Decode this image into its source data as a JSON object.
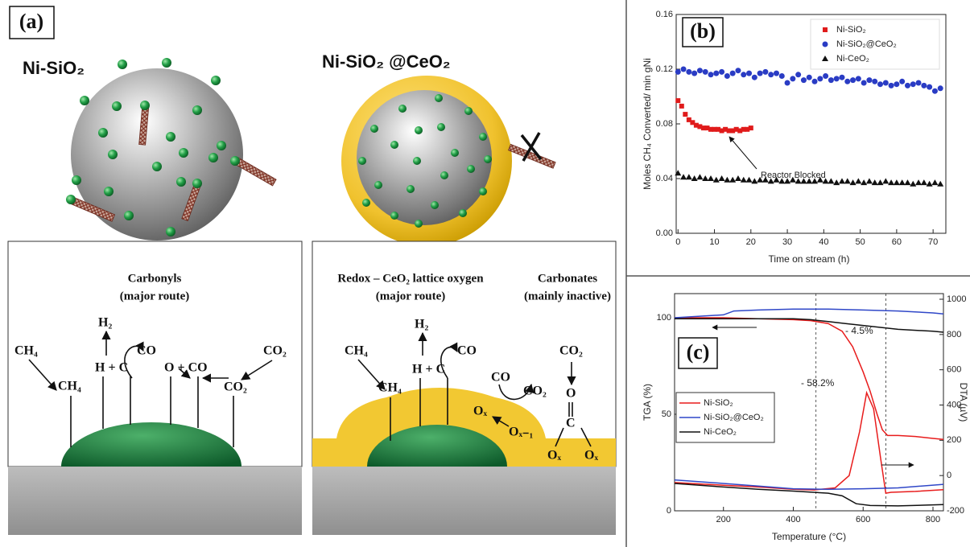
{
  "panel_a": {
    "label": "(a)",
    "left_title": "Ni-SiO₂",
    "right_title": "Ni-SiO₂ @CeO₂",
    "left_box": {
      "heading": [
        "Carbonyls",
        "(major route)"
      ],
      "labels": [
        "CH₄",
        "CH₄",
        "H₂",
        "H + C",
        "CO",
        "O + CO",
        "CO₂",
        "CO₂"
      ]
    },
    "right_box": {
      "heading": [
        "Redox – CeO₂ lattice oxygen",
        "(major route)"
      ],
      "heading2": [
        "Carbonates",
        "(mainly inactive)"
      ],
      "labels": [
        "CH₄",
        "CH₄",
        "H₂",
        "H + C",
        "CO",
        "CO",
        "CO₂",
        "Oₓ",
        "Oₓ₋₁",
        "CO₂",
        "O",
        "C",
        "Oₓ",
        "Oₓ"
      ]
    }
  },
  "chart_data": [
    {
      "type": "scatter",
      "panel_label": "(b)",
      "y_label": "Moles CH₄ Converted/ min gNi",
      "x_label": "Time on stream (h)",
      "annotations": [
        "Reactor Blocked"
      ],
      "xlim": [
        -0.5,
        73.5
      ],
      "xticks": [
        0,
        10,
        20,
        30,
        40,
        50,
        60,
        70
      ],
      "ylim": [
        0,
        0.16
      ],
      "yticks": [
        {
          "value": 0,
          "label": "0.00"
        },
        {
          "value": 0.04,
          "label": "0.04"
        },
        {
          "value": 0.08,
          "label": "0.08"
        },
        {
          "value": 0.12,
          "label": "0.12"
        },
        {
          "value": 0.16,
          "label": "0.16"
        }
      ],
      "legend": "upper right",
      "series": [
        {
          "name": "Ni-SiO₂",
          "color": "#e01b1b",
          "marker": "square",
          "x": [
            0,
            1,
            2,
            3,
            4,
            5,
            6,
            7,
            8,
            9,
            10,
            11,
            12,
            13,
            14,
            15,
            16,
            17,
            18,
            19,
            20
          ],
          "values": [
            0.097,
            0.093,
            0.087,
            0.083,
            0.081,
            0.079,
            0.078,
            0.077,
            0.077,
            0.076,
            0.076,
            0.076,
            0.075,
            0.076,
            0.075,
            0.075,
            0.076,
            0.075,
            0.076,
            0.076,
            0.077
          ]
        },
        {
          "name": "Ni-SiO₂@CeO₂",
          "color": "#2a3cc4",
          "marker": "circle",
          "x": [
            0,
            1.5,
            3,
            4.5,
            6,
            7.5,
            9,
            10.5,
            12,
            13.5,
            15,
            16.5,
            18,
            19.5,
            21,
            22.5,
            24,
            25.5,
            27,
            28.5,
            30,
            31.5,
            33,
            34.5,
            36,
            37.5,
            39,
            40.5,
            42,
            43.5,
            45,
            46.5,
            48,
            49.5,
            51,
            52.5,
            54,
            55.5,
            57,
            58.5,
            60,
            61.5,
            63,
            64.5,
            66,
            67.5,
            69,
            70.5,
            72
          ],
          "values": [
            0.118,
            0.12,
            0.118,
            0.117,
            0.119,
            0.118,
            0.116,
            0.117,
            0.118,
            0.115,
            0.117,
            0.119,
            0.116,
            0.117,
            0.114,
            0.117,
            0.118,
            0.116,
            0.117,
            0.115,
            0.11,
            0.113,
            0.116,
            0.112,
            0.114,
            0.111,
            0.113,
            0.115,
            0.112,
            0.113,
            0.114,
            0.111,
            0.112,
            0.113,
            0.11,
            0.112,
            0.111,
            0.109,
            0.11,
            0.108,
            0.109,
            0.111,
            0.108,
            0.109,
            0.11,
            0.108,
            0.107,
            0.104,
            0.106
          ]
        },
        {
          "name": "Ni-CeO₂",
          "color": "#111111",
          "marker": "triangle",
          "x": [
            0,
            1.5,
            3,
            4.5,
            6,
            7.5,
            9,
            10.5,
            12,
            13.5,
            15,
            16.5,
            18,
            19.5,
            21,
            22.5,
            24,
            25.5,
            27,
            28.5,
            30,
            31.5,
            33,
            34.5,
            36,
            37.5,
            39,
            40.5,
            42,
            43.5,
            45,
            46.5,
            48,
            49.5,
            51,
            52.5,
            54,
            55.5,
            57,
            58.5,
            60,
            61.5,
            63,
            64.5,
            66,
            67.5,
            69,
            70.5,
            72
          ],
          "values": [
            0.044,
            0.041,
            0.041,
            0.04,
            0.041,
            0.04,
            0.04,
            0.039,
            0.04,
            0.039,
            0.039,
            0.04,
            0.039,
            0.039,
            0.038,
            0.039,
            0.039,
            0.038,
            0.039,
            0.038,
            0.038,
            0.039,
            0.038,
            0.038,
            0.038,
            0.038,
            0.039,
            0.038,
            0.038,
            0.037,
            0.038,
            0.038,
            0.037,
            0.038,
            0.037,
            0.038,
            0.037,
            0.037,
            0.038,
            0.037,
            0.037,
            0.037,
            0.037,
            0.036,
            0.037,
            0.037,
            0.036,
            0.037,
            0.036
          ]
        }
      ]
    },
    {
      "type": "line",
      "panel_label": "(c)",
      "y_label": "TGA (%)",
      "y2_label": "DTA (µV)",
      "x_label": "Temperature (°C)",
      "annotations": [
        "- 4.5%",
        "- 58.2%"
      ],
      "reference_lines": [
        465,
        665
      ],
      "xlim": [
        60,
        830
      ],
      "xticks": [
        200,
        400,
        600,
        800
      ],
      "ylim": [
        0,
        112.5
      ],
      "yticks": [
        0,
        50,
        100
      ],
      "y2lim": [
        -200,
        1032
      ],
      "y2ticks": [
        -200,
        0,
        200,
        400,
        600,
        800,
        1000
      ],
      "legend": "lower left",
      "series": [
        {
          "name": "Ni-SiO₂",
          "color": "#e81c1c",
          "x": [
            60,
            200,
            300,
            400,
            450,
            500,
            540,
            570,
            600,
            620,
            640,
            655,
            670,
            700,
            750,
            800,
            830
          ],
          "values": [
            100,
            100,
            99.5,
            99,
            98.5,
            97,
            93,
            85,
            72,
            62,
            50,
            42,
            39,
            39,
            38.5,
            37.5,
            37
          ]
        },
        {
          "name": "Ni-SiO₂@CeO₂",
          "color": "#2f47c8",
          "x": [
            60,
            200,
            230,
            300,
            400,
            500,
            600,
            700,
            800,
            830
          ],
          "values": [
            100,
            101.5,
            103.5,
            104,
            104.5,
            104.5,
            104,
            103.5,
            102.5,
            102
          ]
        },
        {
          "name": "Ni-CeO₂",
          "color": "#111111",
          "x": [
            60,
            200,
            300,
            400,
            450,
            500,
            550,
            600,
            650,
            700,
            800,
            830
          ],
          "values": [
            99.5,
            99.5,
            99.5,
            99.5,
            99,
            98,
            97,
            96,
            95,
            94,
            93,
            92.5
          ]
        },
        {
          "color": "#e81c1c",
          "axis": "y2",
          "x": [
            60,
            200,
            300,
            400,
            460,
            520,
            560,
            590,
            610,
            630,
            650,
            665,
            680,
            750,
            830
          ],
          "values": [
            -40,
            -55,
            -65,
            -78,
            -82,
            -70,
            0,
            250,
            470,
            380,
            100,
            -100,
            -95,
            -90,
            -80
          ]
        },
        {
          "color": "#2f47c8",
          "axis": "y2",
          "x": [
            60,
            200,
            300,
            400,
            500,
            600,
            700,
            830
          ],
          "values": [
            -25,
            -45,
            -60,
            -75,
            -78,
            -75,
            -70,
            -50
          ]
        },
        {
          "color": "#111111",
          "axis": "y2",
          "x": [
            60,
            200,
            300,
            400,
            500,
            540,
            580,
            620,
            700,
            830
          ],
          "values": [
            -45,
            -65,
            -78,
            -88,
            -100,
            -115,
            -160,
            -170,
            -172,
            -165
          ]
        }
      ]
    }
  ]
}
